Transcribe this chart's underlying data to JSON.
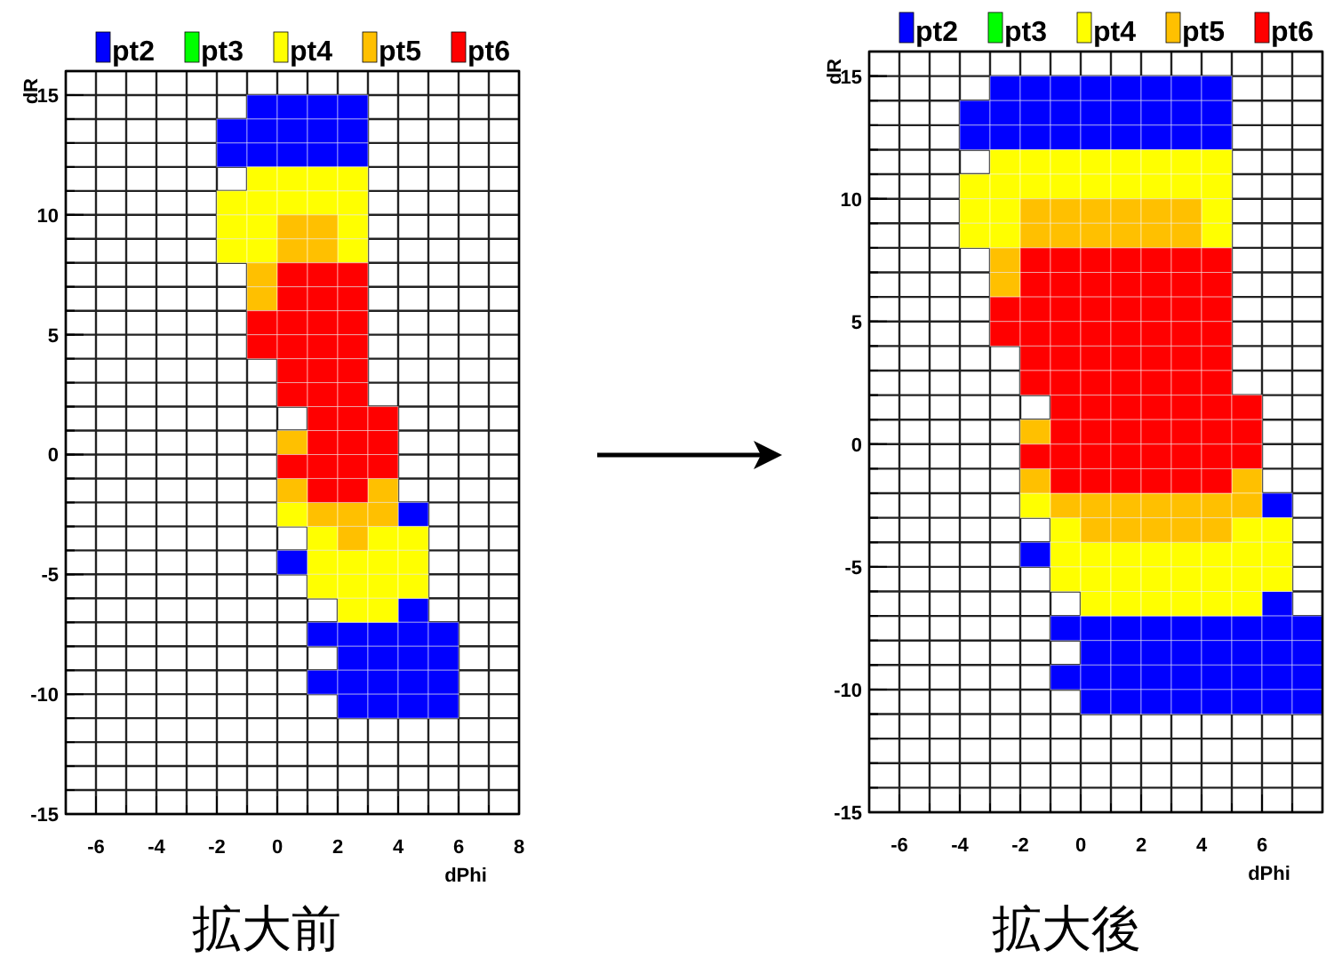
{
  "chart_data": [
    {
      "type": "scatter",
      "title": "拡大前",
      "xlabel": "dPhi",
      "ylabel": "dR",
      "marker": "square",
      "grid": true,
      "legend": "top",
      "xlim": [
        -7,
        8
      ],
      "ylim": [
        -15,
        16
      ],
      "xticks": [
        -6,
        -4,
        -2,
        0,
        2,
        4,
        6,
        8
      ],
      "yticks": [
        -15,
        -10,
        -5,
        0,
        5,
        10,
        15
      ],
      "series": [
        {
          "name": "pt2",
          "color": "#0000ff",
          "x": [
            -0.5,
            0.5,
            1.5,
            2.5,
            -1.5,
            -0.5,
            0.5,
            1.5,
            2.5,
            -1.5,
            -0.5,
            0.5,
            1.5,
            2.5,
            4.5,
            0.5,
            4.5,
            1.5,
            2.5,
            3.5,
            4.5,
            5.5,
            2.5,
            3.5,
            4.5,
            5.5,
            1.5,
            2.5,
            3.5,
            4.5,
            5.5,
            2.5,
            3.5,
            4.5,
            5.5
          ],
          "values": [
            14.5,
            14.5,
            14.5,
            14.5,
            13.5,
            13.5,
            13.5,
            13.5,
            13.5,
            12.5,
            12.5,
            12.5,
            12.5,
            12.5,
            -2.5,
            -4.5,
            -6.5,
            -7.5,
            -7.5,
            -7.5,
            -7.5,
            -7.5,
            -8.5,
            -8.5,
            -8.5,
            -8.5,
            -9.5,
            -9.5,
            -9.5,
            -9.5,
            -9.5,
            -10.5,
            -10.5,
            -10.5,
            -10.5
          ]
        },
        {
          "name": "pt3",
          "color": "#00ff00"
        },
        {
          "name": "pt4",
          "color": "#ffff00",
          "x": [
            -0.5,
            0.5,
            1.5,
            2.5,
            -1.5,
            -0.5,
            0.5,
            1.5,
            2.5,
            -1.5,
            -0.5,
            2.5,
            -1.5,
            -0.5,
            2.5,
            0.5,
            1.5,
            3.5,
            4.5,
            1.5,
            2.5,
            3.5,
            4.5,
            1.5,
            2.5,
            3.5,
            4.5,
            2.5,
            3.5
          ],
          "values": [
            11.5,
            11.5,
            11.5,
            11.5,
            10.5,
            10.5,
            10.5,
            10.5,
            10.5,
            9.5,
            9.5,
            9.5,
            8.5,
            8.5,
            8.5,
            -2.5,
            -3.5,
            -3.5,
            -3.5,
            -4.5,
            -4.5,
            -4.5,
            -4.5,
            -5.5,
            -5.5,
            -5.5,
            -5.5,
            -6.5,
            -6.5
          ]
        },
        {
          "name": "pt5",
          "color": "#ffc000",
          "x": [
            0.5,
            1.5,
            0.5,
            1.5,
            -0.5,
            -0.5,
            0.5,
            0.5,
            3.5,
            1.5,
            2.5,
            3.5,
            2.5
          ],
          "values": [
            9.5,
            9.5,
            8.5,
            8.5,
            7.5,
            6.5,
            0.5,
            -1.5,
            -1.5,
            -2.5,
            -2.5,
            -2.5,
            -3.5
          ]
        },
        {
          "name": "pt6",
          "color": "#ff0000",
          "x": [
            0.5,
            1.5,
            2.5,
            0.5,
            1.5,
            2.5,
            -0.5,
            0.5,
            1.5,
            2.5,
            -0.5,
            0.5,
            1.5,
            2.5,
            0.5,
            1.5,
            2.5,
            0.5,
            1.5,
            2.5,
            1.5,
            2.5,
            3.5,
            1.5,
            2.5,
            3.5,
            0.5,
            1.5,
            2.5,
            3.5,
            1.5,
            2.5
          ],
          "values": [
            7.5,
            7.5,
            7.5,
            6.5,
            6.5,
            6.5,
            5.5,
            5.5,
            5.5,
            5.5,
            4.5,
            4.5,
            4.5,
            4.5,
            3.5,
            3.5,
            3.5,
            2.5,
            2.5,
            2.5,
            1.5,
            1.5,
            1.5,
            0.5,
            0.5,
            0.5,
            -0.5,
            -0.5,
            -0.5,
            -0.5,
            -1.5,
            -1.5
          ]
        }
      ]
    },
    {
      "type": "scatter",
      "title": "拡大後",
      "xlabel": "dPhi",
      "ylabel": "dR",
      "marker": "square",
      "grid": true,
      "legend": "top",
      "xlim": [
        -7,
        8
      ],
      "ylim": [
        -15,
        16
      ],
      "xticks": [
        -6,
        -4,
        -2,
        0,
        2,
        4,
        6
      ],
      "yticks": [
        -15,
        -10,
        -5,
        0,
        5,
        10,
        15
      ],
      "series": [
        {
          "name": "pt2",
          "color": "#0000ff",
          "x": [
            -2.5,
            -1.5,
            -0.5,
            0.5,
            1.5,
            2.5,
            3.5,
            4.5,
            -3.5,
            -2.5,
            -1.5,
            -0.5,
            0.5,
            1.5,
            2.5,
            3.5,
            4.5,
            -3.5,
            -2.5,
            -1.5,
            -0.5,
            0.5,
            1.5,
            2.5,
            3.5,
            4.5,
            6.5,
            -1.5,
            6.5,
            -0.5,
            0.5,
            1.5,
            2.5,
            3.5,
            4.5,
            5.5,
            6.5,
            7.5,
            0.5,
            1.5,
            2.5,
            3.5,
            4.5,
            5.5,
            6.5,
            7.5,
            -0.5,
            0.5,
            1.5,
            2.5,
            3.5,
            4.5,
            5.5,
            6.5,
            7.5,
            0.5,
            1.5,
            2.5,
            3.5,
            4.5,
            5.5,
            6.5,
            7.5
          ],
          "values": [
            14.5,
            14.5,
            14.5,
            14.5,
            14.5,
            14.5,
            14.5,
            14.5,
            13.5,
            13.5,
            13.5,
            13.5,
            13.5,
            13.5,
            13.5,
            13.5,
            13.5,
            12.5,
            12.5,
            12.5,
            12.5,
            12.5,
            12.5,
            12.5,
            12.5,
            12.5,
            -2.5,
            -4.5,
            -6.5,
            -7.5,
            -7.5,
            -7.5,
            -7.5,
            -7.5,
            -7.5,
            -7.5,
            -7.5,
            -7.5,
            -8.5,
            -8.5,
            -8.5,
            -8.5,
            -8.5,
            -8.5,
            -8.5,
            -8.5,
            -9.5,
            -9.5,
            -9.5,
            -9.5,
            -9.5,
            -9.5,
            -9.5,
            -9.5,
            -9.5,
            -10.5,
            -10.5,
            -10.5,
            -10.5,
            -10.5,
            -10.5,
            -10.5,
            -10.5
          ]
        },
        {
          "name": "pt3",
          "color": "#00ff00"
        },
        {
          "name": "pt4",
          "color": "#ffff00",
          "x": [
            -2.5,
            -1.5,
            -0.5,
            0.5,
            1.5,
            2.5,
            3.5,
            4.5,
            -3.5,
            -2.5,
            -1.5,
            -0.5,
            0.5,
            1.5,
            2.5,
            3.5,
            4.5,
            -3.5,
            -2.5,
            4.5,
            -3.5,
            -2.5,
            4.5,
            -1.5,
            -0.5,
            5.5,
            6.5,
            -0.5,
            0.5,
            1.5,
            2.5,
            3.5,
            4.5,
            5.5,
            6.5,
            -0.5,
            0.5,
            1.5,
            2.5,
            3.5,
            4.5,
            5.5,
            6.5,
            0.5,
            1.5,
            2.5,
            3.5,
            4.5,
            5.5
          ],
          "values": [
            11.5,
            11.5,
            11.5,
            11.5,
            11.5,
            11.5,
            11.5,
            11.5,
            10.5,
            10.5,
            10.5,
            10.5,
            10.5,
            10.5,
            10.5,
            10.5,
            10.5,
            9.5,
            9.5,
            9.5,
            8.5,
            8.5,
            8.5,
            -2.5,
            -3.5,
            -3.5,
            -3.5,
            -4.5,
            -4.5,
            -4.5,
            -4.5,
            -4.5,
            -4.5,
            -4.5,
            -4.5,
            -5.5,
            -5.5,
            -5.5,
            -5.5,
            -5.5,
            -5.5,
            -5.5,
            -5.5,
            -6.5,
            -6.5,
            -6.5,
            -6.5,
            -6.5,
            -6.5
          ]
        },
        {
          "name": "pt5",
          "color": "#ffc000",
          "x": [
            -1.5,
            -0.5,
            0.5,
            1.5,
            2.5,
            3.5,
            -1.5,
            -0.5,
            0.5,
            1.5,
            2.5,
            3.5,
            -2.5,
            -2.5,
            -1.5,
            -1.5,
            5.5,
            -0.5,
            0.5,
            1.5,
            2.5,
            3.5,
            4.5,
            5.5,
            0.5,
            1.5,
            2.5,
            3.5,
            4.5
          ],
          "values": [
            9.5,
            9.5,
            9.5,
            9.5,
            9.5,
            9.5,
            8.5,
            8.5,
            8.5,
            8.5,
            8.5,
            8.5,
            7.5,
            6.5,
            0.5,
            -1.5,
            -1.5,
            -2.5,
            -2.5,
            -2.5,
            -2.5,
            -2.5,
            -2.5,
            -2.5,
            -3.5,
            -3.5,
            -3.5,
            -3.5,
            -3.5
          ]
        },
        {
          "name": "pt6",
          "color": "#ff0000",
          "x": [
            -1.5,
            -0.5,
            0.5,
            1.5,
            2.5,
            3.5,
            4.5,
            -1.5,
            -0.5,
            0.5,
            1.5,
            2.5,
            3.5,
            4.5,
            -2.5,
            -1.5,
            -0.5,
            0.5,
            1.5,
            2.5,
            3.5,
            4.5,
            -2.5,
            -1.5,
            -0.5,
            0.5,
            1.5,
            2.5,
            3.5,
            4.5,
            -1.5,
            -0.5,
            0.5,
            1.5,
            2.5,
            3.5,
            4.5,
            -1.5,
            -0.5,
            0.5,
            1.5,
            2.5,
            3.5,
            4.5,
            -0.5,
            0.5,
            1.5,
            2.5,
            3.5,
            4.5,
            5.5,
            -0.5,
            0.5,
            1.5,
            2.5,
            3.5,
            4.5,
            5.5,
            -1.5,
            -0.5,
            0.5,
            1.5,
            2.5,
            3.5,
            4.5,
            5.5,
            -0.5,
            0.5,
            1.5,
            2.5,
            3.5,
            4.5
          ],
          "values": [
            7.5,
            7.5,
            7.5,
            7.5,
            7.5,
            7.5,
            7.5,
            6.5,
            6.5,
            6.5,
            6.5,
            6.5,
            6.5,
            6.5,
            5.5,
            5.5,
            5.5,
            5.5,
            5.5,
            5.5,
            5.5,
            5.5,
            4.5,
            4.5,
            4.5,
            4.5,
            4.5,
            4.5,
            4.5,
            4.5,
            3.5,
            3.5,
            3.5,
            3.5,
            3.5,
            3.5,
            3.5,
            2.5,
            2.5,
            2.5,
            2.5,
            2.5,
            2.5,
            2.5,
            1.5,
            1.5,
            1.5,
            1.5,
            1.5,
            1.5,
            1.5,
            0.5,
            0.5,
            0.5,
            0.5,
            0.5,
            0.5,
            0.5,
            -0.5,
            -0.5,
            -0.5,
            -0.5,
            -0.5,
            -0.5,
            -0.5,
            -0.5,
            -1.5,
            -1.5,
            -1.5,
            -1.5,
            -1.5,
            -1.5
          ]
        }
      ]
    }
  ]
}
